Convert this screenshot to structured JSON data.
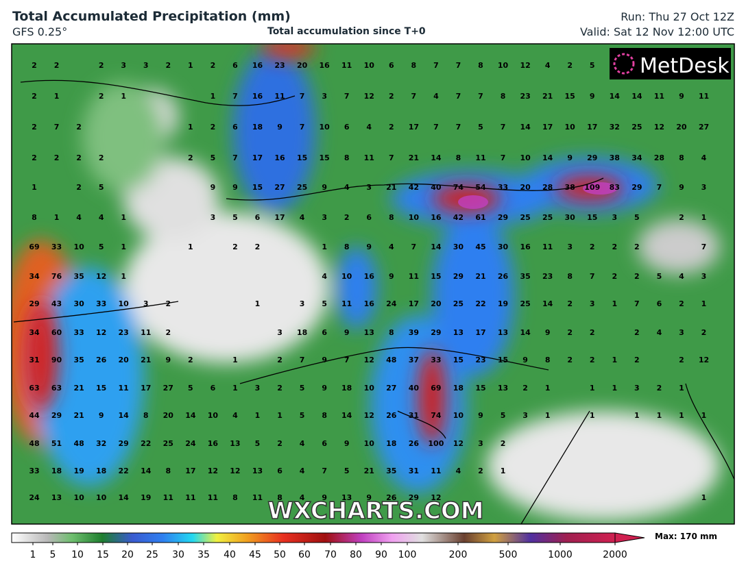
{
  "header": {
    "title": "Total Accumulated Precipitation (mm)",
    "model": "GFS 0.25°",
    "subtitle": "Total accumulation since T+0",
    "run": "Run: Thu 27 Oct 12Z",
    "valid": "Valid: Sat 12 Nov 12:00 UTC"
  },
  "logo": "MetDesk",
  "watermark": "WXCHARTS.COM",
  "grid": {
    "rows": [
      [
        2,
        2,
        null,
        2,
        3,
        3,
        2,
        1,
        2,
        6,
        16,
        23,
        20,
        16,
        11,
        10,
        6,
        8,
        7,
        7,
        8,
        10,
        12,
        4,
        2,
        5,
        null,
        null,
        null,
        null,
        null
      ],
      [
        2,
        1,
        null,
        2,
        1,
        null,
        null,
        null,
        1,
        7,
        16,
        11,
        7,
        3,
        7,
        12,
        2,
        7,
        4,
        7,
        7,
        8,
        23,
        21,
        15,
        9,
        14,
        14,
        11,
        9,
        11
      ],
      [
        2,
        7,
        2,
        null,
        null,
        null,
        null,
        1,
        2,
        6,
        18,
        9,
        7,
        10,
        6,
        4,
        2,
        17,
        7,
        7,
        5,
        7,
        14,
        17,
        10,
        17,
        32,
        25,
        12,
        20,
        27
      ],
      [
        2,
        2,
        2,
        2,
        null,
        null,
        null,
        2,
        5,
        7,
        17,
        16,
        15,
        15,
        8,
        11,
        7,
        21,
        14,
        8,
        11,
        7,
        10,
        14,
        9,
        29,
        38,
        34,
        28,
        8,
        4
      ],
      [
        1,
        null,
        2,
        5,
        null,
        null,
        null,
        null,
        9,
        9,
        15,
        27,
        25,
        9,
        4,
        3,
        21,
        42,
        40,
        74,
        54,
        33,
        20,
        28,
        38,
        109,
        83,
        29,
        7,
        9,
        3
      ],
      [
        8,
        1,
        4,
        4,
        1,
        null,
        null,
        null,
        3,
        5,
        6,
        17,
        4,
        3,
        2,
        6,
        8,
        10,
        16,
        42,
        61,
        29,
        25,
        25,
        30,
        15,
        3,
        5,
        null,
        2,
        1
      ],
      [
        69,
        33,
        10,
        5,
        1,
        null,
        null,
        1,
        null,
        2,
        2,
        null,
        null,
        1,
        8,
        9,
        4,
        7,
        14,
        30,
        45,
        30,
        16,
        11,
        3,
        2,
        2,
        2,
        null,
        null,
        7
      ],
      [
        34,
        76,
        35,
        12,
        1,
        null,
        null,
        null,
        null,
        null,
        null,
        null,
        null,
        4,
        10,
        16,
        9,
        11,
        15,
        29,
        21,
        26,
        35,
        23,
        8,
        7,
        2,
        2,
        5,
        4,
        3
      ],
      [
        29,
        43,
        30,
        33,
        10,
        3,
        2,
        null,
        null,
        null,
        1,
        null,
        3,
        5,
        11,
        16,
        24,
        17,
        20,
        25,
        22,
        19,
        25,
        14,
        2,
        3,
        1,
        7,
        6,
        2,
        1
      ],
      [
        34,
        60,
        33,
        12,
        23,
        11,
        2,
        null,
        null,
        null,
        null,
        3,
        18,
        6,
        9,
        13,
        8,
        39,
        29,
        13,
        17,
        13,
        14,
        9,
        2,
        2,
        null,
        2,
        4,
        3,
        2
      ],
      [
        31,
        90,
        35,
        26,
        20,
        21,
        9,
        2,
        null,
        1,
        null,
        2,
        7,
        9,
        7,
        12,
        48,
        37,
        33,
        15,
        23,
        15,
        9,
        8,
        2,
        2,
        1,
        2,
        null,
        2,
        12
      ],
      [
        63,
        63,
        21,
        15,
        11,
        17,
        27,
        5,
        6,
        1,
        3,
        2,
        5,
        9,
        18,
        10,
        27,
        40,
        69,
        18,
        15,
        13,
        2,
        1,
        null,
        1,
        1,
        3,
        2,
        1,
        null
      ],
      [
        44,
        29,
        21,
        9,
        14,
        8,
        20,
        14,
        10,
        4,
        1,
        1,
        5,
        8,
        14,
        12,
        26,
        31,
        74,
        10,
        9,
        5,
        3,
        1,
        null,
        1,
        null,
        1,
        1,
        1,
        1
      ],
      [
        48,
        51,
        48,
        32,
        29,
        22,
        25,
        24,
        16,
        13,
        5,
        2,
        4,
        6,
        9,
        10,
        18,
        26,
        100,
        12,
        3,
        2,
        null,
        null,
        null,
        null,
        null,
        null,
        null,
        null,
        null
      ],
      [
        33,
        18,
        19,
        18,
        22,
        14,
        8,
        17,
        12,
        12,
        13,
        6,
        4,
        7,
        5,
        21,
        35,
        31,
        11,
        4,
        2,
        1,
        null,
        null,
        null,
        null,
        null,
        null,
        null,
        null,
        null
      ],
      [
        24,
        13,
        10,
        10,
        14,
        19,
        11,
        11,
        11,
        8,
        11,
        8,
        4,
        9,
        13,
        9,
        26,
        29,
        12,
        null,
        null,
        null,
        null,
        null,
        null,
        null,
        null,
        null,
        null,
        null,
        1
      ]
    ]
  },
  "colorbar": {
    "labels": [
      1,
      5,
      10,
      15,
      20,
      25,
      30,
      35,
      40,
      45,
      50,
      60,
      70,
      80,
      90,
      100,
      200,
      500,
      1000,
      2000
    ],
    "max_label": "Max: 170 mm"
  }
}
